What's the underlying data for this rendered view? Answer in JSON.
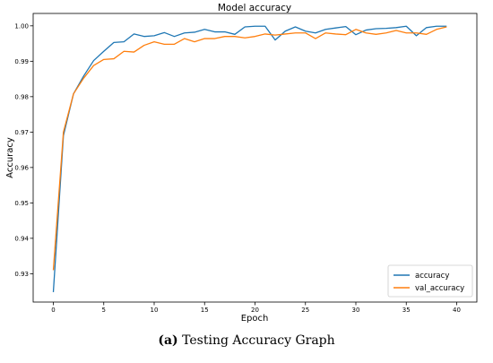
{
  "chart_data": {
    "type": "line",
    "title": "Model accuracy",
    "xlabel": "Epoch",
    "ylabel": "Accuracy",
    "xlim": [
      -2,
      42
    ],
    "ylim": [
      0.922,
      1.0035
    ],
    "xticks": [
      0,
      5,
      10,
      15,
      20,
      25,
      30,
      35,
      40
    ],
    "yticks": [
      0.93,
      0.94,
      0.95,
      0.96,
      0.97,
      0.98,
      0.99,
      1.0
    ],
    "xtick_labels": [
      "0",
      "5",
      "10",
      "15",
      "20",
      "25",
      "30",
      "35",
      "40"
    ],
    "ytick_labels": [
      "0.93",
      "0.94",
      "0.95",
      "0.96",
      "0.97",
      "0.98",
      "0.99",
      "1.00"
    ],
    "grid": false,
    "legend_position": "lower-right",
    "x": [
      0,
      1,
      2,
      3,
      4,
      5,
      6,
      7,
      8,
      9,
      10,
      11,
      12,
      13,
      14,
      15,
      16,
      17,
      18,
      19,
      20,
      21,
      22,
      23,
      24,
      25,
      26,
      27,
      28,
      29,
      30,
      31,
      32,
      33,
      34,
      35,
      36,
      37,
      38,
      39
    ],
    "series": [
      {
        "name": "accuracy",
        "color": "#1f77b4",
        "values": [
          0.9248,
          0.969,
          0.9808,
          0.9858,
          0.9902,
          0.9928,
          0.9953,
          0.9955,
          0.9977,
          0.997,
          0.9972,
          0.9981,
          0.997,
          0.998,
          0.9982,
          0.999,
          0.9983,
          0.9983,
          0.9976,
          0.9997,
          0.9999,
          0.9999,
          0.996,
          0.9985,
          0.9997,
          0.9985,
          0.998,
          0.999,
          0.9994,
          0.9998,
          0.9975,
          0.9988,
          0.9992,
          0.9993,
          0.9995,
          0.9999,
          0.9972,
          0.9995,
          0.9999,
          0.9999
        ]
      },
      {
        "name": "val_accuracy",
        "color": "#ff7f0e",
        "values": [
          0.931,
          0.97,
          0.9808,
          0.9852,
          0.9888,
          0.9905,
          0.9907,
          0.9928,
          0.9926,
          0.9945,
          0.9955,
          0.9948,
          0.9948,
          0.9964,
          0.9955,
          0.9964,
          0.9964,
          0.997,
          0.997,
          0.9966,
          0.997,
          0.9977,
          0.9974,
          0.9977,
          0.998,
          0.998,
          0.9964,
          0.998,
          0.9977,
          0.9975,
          0.999,
          0.998,
          0.9976,
          0.998,
          0.9987,
          0.998,
          0.998,
          0.9976,
          0.999,
          0.9997
        ]
      }
    ]
  },
  "caption": {
    "label": "(a)",
    "text": " Testing Accuracy Graph"
  }
}
